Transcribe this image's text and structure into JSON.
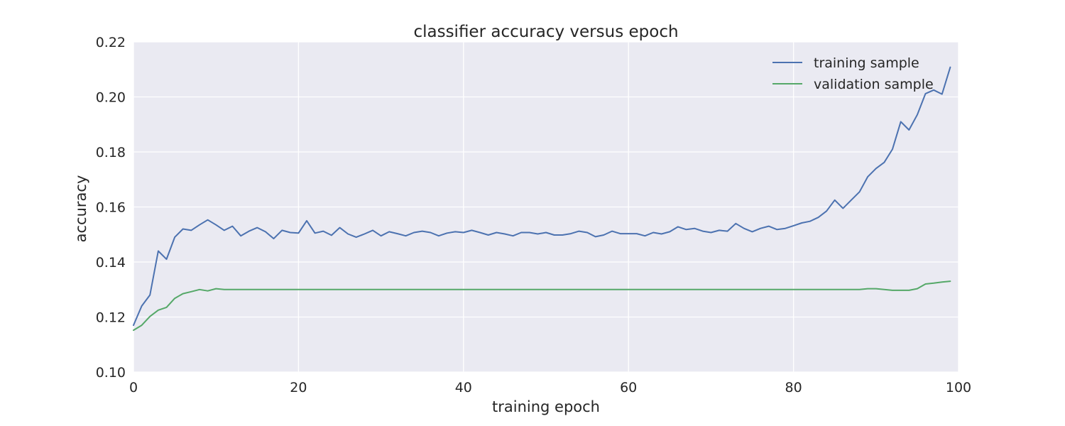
{
  "chart_data": {
    "type": "line",
    "title": "classifier accuracy versus epoch",
    "xlabel": "training epoch",
    "ylabel": "accuracy",
    "xlim": [
      0,
      100
    ],
    "ylim": [
      0.1,
      0.22
    ],
    "xticks": [
      0,
      20,
      40,
      60,
      80,
      100
    ],
    "xtick_labels": [
      "0",
      "20",
      "40",
      "60",
      "80",
      "100"
    ],
    "yticks": [
      0.1,
      0.12,
      0.14,
      0.16,
      0.18,
      0.2,
      0.22
    ],
    "ytick_labels": [
      "0.10",
      "0.12",
      "0.14",
      "0.16",
      "0.18",
      "0.20",
      "0.22"
    ],
    "grid": true,
    "legend_position": "top-right",
    "background_color": "#eaeaf2",
    "grid_color": "#ffffff",
    "x": [
      0,
      1,
      2,
      3,
      4,
      5,
      6,
      7,
      8,
      9,
      10,
      11,
      12,
      13,
      14,
      15,
      16,
      17,
      18,
      19,
      20,
      21,
      22,
      23,
      24,
      25,
      26,
      27,
      28,
      29,
      30,
      31,
      32,
      33,
      34,
      35,
      36,
      37,
      38,
      39,
      40,
      41,
      42,
      43,
      44,
      45,
      46,
      47,
      48,
      49,
      50,
      51,
      52,
      53,
      54,
      55,
      56,
      57,
      58,
      59,
      60,
      61,
      62,
      63,
      64,
      65,
      66,
      67,
      68,
      69,
      70,
      71,
      72,
      73,
      74,
      75,
      76,
      77,
      78,
      79,
      80,
      81,
      82,
      83,
      84,
      85,
      86,
      87,
      88,
      89,
      90,
      91,
      92,
      93,
      94,
      95,
      96,
      97,
      98,
      99
    ],
    "series": [
      {
        "name": "training sample",
        "color": "#4c72b0",
        "values": [
          0.117,
          0.124,
          0.128,
          0.144,
          0.141,
          0.149,
          0.152,
          0.1515,
          0.1535,
          0.1553,
          0.1535,
          0.1515,
          0.153,
          0.1495,
          0.1512,
          0.1525,
          0.151,
          0.1485,
          0.1515,
          0.1507,
          0.1505,
          0.155,
          0.1505,
          0.1512,
          0.1497,
          0.1525,
          0.1502,
          0.149,
          0.1502,
          0.1515,
          0.1495,
          0.151,
          0.1503,
          0.1495,
          0.1507,
          0.1512,
          0.1507,
          0.1495,
          0.1505,
          0.151,
          0.1507,
          0.1515,
          0.1507,
          0.1498,
          0.1507,
          0.1502,
          0.1495,
          0.1507,
          0.1507,
          0.1502,
          0.1507,
          0.1498,
          0.1498,
          0.1503,
          0.1512,
          0.1507,
          0.1492,
          0.1498,
          0.1512,
          0.1503,
          0.1503,
          0.1503,
          0.1495,
          0.1507,
          0.1502,
          0.151,
          0.1528,
          0.1518,
          0.1522,
          0.1512,
          0.1507,
          0.1515,
          0.1512,
          0.154,
          0.1522,
          0.151,
          0.1522,
          0.153,
          0.1518,
          0.1522,
          0.1532,
          0.1542,
          0.1548,
          0.1562,
          0.1585,
          0.1625,
          0.1595,
          0.1625,
          0.1655,
          0.171,
          0.174,
          0.1762,
          0.181,
          0.191,
          0.188,
          0.1935,
          0.2012,
          0.2025,
          0.201,
          0.2108
        ]
      },
      {
        "name": "validation sample",
        "color": "#55a868",
        "values": [
          0.1152,
          0.117,
          0.1202,
          0.1225,
          0.1235,
          0.1268,
          0.1285,
          0.1292,
          0.13,
          0.1295,
          0.1303,
          0.13,
          0.13,
          0.13,
          0.13,
          0.13,
          0.13,
          0.13,
          0.13,
          0.13,
          0.13,
          0.13,
          0.13,
          0.13,
          0.13,
          0.13,
          0.13,
          0.13,
          0.13,
          0.13,
          0.13,
          0.13,
          0.13,
          0.13,
          0.13,
          0.13,
          0.13,
          0.13,
          0.13,
          0.13,
          0.13,
          0.13,
          0.13,
          0.13,
          0.13,
          0.13,
          0.13,
          0.13,
          0.13,
          0.13,
          0.13,
          0.13,
          0.13,
          0.13,
          0.13,
          0.13,
          0.13,
          0.13,
          0.13,
          0.13,
          0.13,
          0.13,
          0.13,
          0.13,
          0.13,
          0.13,
          0.13,
          0.13,
          0.13,
          0.13,
          0.13,
          0.13,
          0.13,
          0.13,
          0.13,
          0.13,
          0.13,
          0.13,
          0.13,
          0.13,
          0.13,
          0.13,
          0.13,
          0.13,
          0.13,
          0.13,
          0.13,
          0.13,
          0.13,
          0.1303,
          0.1303,
          0.13,
          0.1297,
          0.1297,
          0.1297,
          0.1303,
          0.132,
          0.1323,
          0.1327,
          0.133
        ]
      }
    ]
  }
}
